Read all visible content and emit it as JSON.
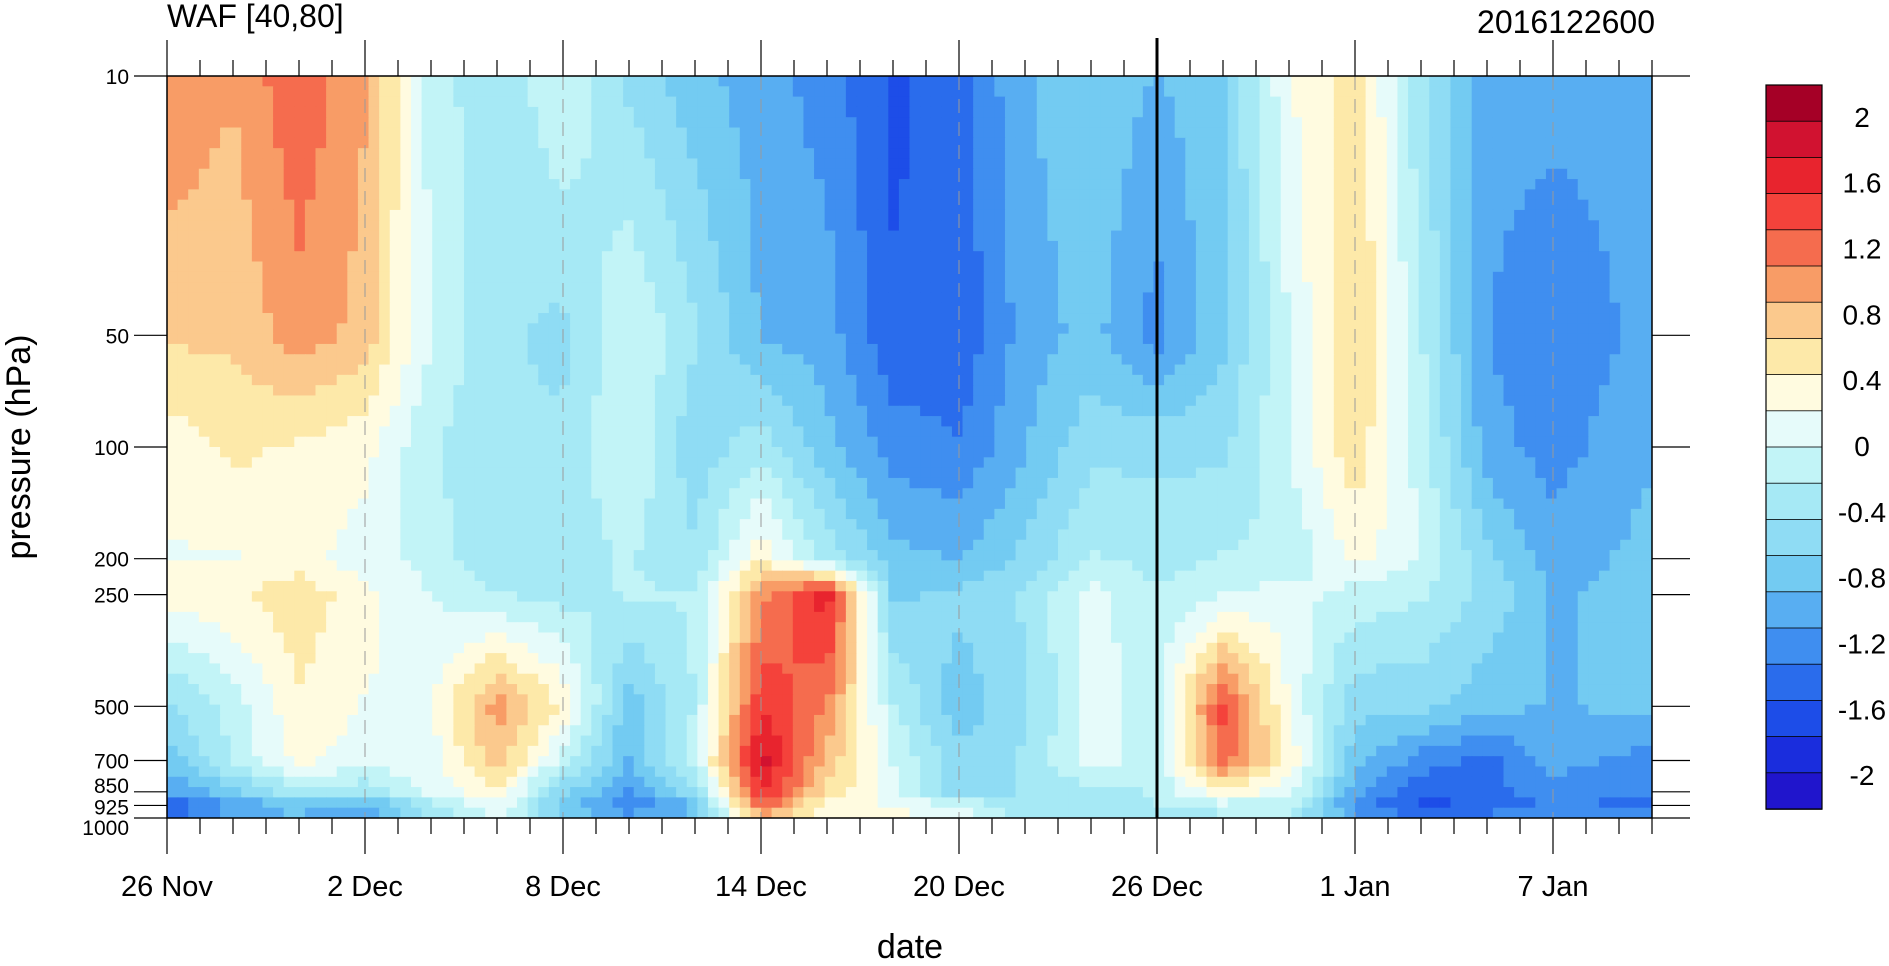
{
  "chart_data": {
    "type": "heatmap",
    "title": "WAF [40,80]",
    "timestamp": "2016122600",
    "xlabel": "date",
    "ylabel": "pressure (hPa)",
    "x_tick_labels": [
      "26 Nov",
      "2 Dec",
      "8 Dec",
      "14 Dec",
      "20 Dec",
      "26 Dec",
      "1 Jan",
      "7 Jan"
    ],
    "x_days": [
      0,
      6,
      12,
      18,
      24,
      30,
      36,
      42
    ],
    "xlim_days": [
      0,
      45
    ],
    "highlight_day": 30,
    "y_ticks": [
      10,
      50,
      100,
      200,
      250,
      500,
      700,
      850,
      925,
      1000
    ],
    "y_tick_labels": [
      "10",
      "50",
      "100",
      "200",
      "250",
      "500",
      "700",
      "850",
      "925",
      "1000"
    ],
    "ylim": [
      10,
      1000
    ],
    "y_scale": "log",
    "grid": "dashed vertical lines at date ticks",
    "colorbar": {
      "labels": [
        "2",
        "1.6",
        "1.2",
        "0.8",
        "0.4",
        "0",
        "-0.4",
        "-0.8",
        "-1.2",
        "-1.6",
        "-2"
      ],
      "label_values": [
        2,
        1.6,
        1.2,
        0.8,
        0.4,
        0,
        -0.4,
        -0.8,
        -1.2,
        -1.6,
        -2
      ],
      "level_range": [
        -2.2,
        2.2
      ],
      "colors": [
        "#a50026",
        "#d11230",
        "#e8242e",
        "#f4423b",
        "#f56c4e",
        "#f89c66",
        "#fbc98d",
        "#fde9a9",
        "#fffbe0",
        "#e6fbfa",
        "#c2f4f7",
        "#a6e9f5",
        "#8fdcf4",
        "#73cbf2",
        "#58aef2",
        "#3f8ef0",
        "#2a6cec",
        "#1d4de8",
        "#1a2ddd",
        "#2015cc"
      ]
    },
    "grid_days": [
      0,
      2,
      4,
      6,
      8,
      10,
      12,
      14,
      16,
      18,
      20,
      22,
      24,
      26,
      28,
      30,
      32,
      34,
      36,
      38,
      40,
      42,
      45
    ],
    "grid_levels": [
      10,
      50,
      100,
      200,
      250,
      500,
      700,
      850,
      925,
      1000
    ],
    "values": [
      [
        1.1,
        0.9,
        1.3,
        0.9,
        -0.1,
        -0.4,
        0.0,
        -0.5,
        -0.8,
        -1.0,
        -1.2,
        -1.6,
        -1.4,
        -0.9,
        -0.7,
        -0.9,
        -0.7,
        0.2,
        0.6,
        -0.4,
        -1.0,
        -1.0,
        -1.0
      ],
      [
        0.7,
        0.7,
        1.0,
        0.8,
        0.0,
        -0.4,
        -0.5,
        0.0,
        -0.4,
        -0.9,
        -1.0,
        -1.5,
        -1.5,
        -1.0,
        -0.8,
        -1.2,
        -0.7,
        0.0,
        0.7,
        -0.2,
        -1.1,
        -1.3,
        -1.0
      ],
      [
        0.3,
        0.5,
        0.4,
        0.3,
        -0.2,
        -0.4,
        -0.4,
        0.0,
        -0.6,
        -0.3,
        -0.8,
        -1.2,
        -1.3,
        -0.9,
        -0.5,
        -0.5,
        -0.5,
        0.0,
        0.6,
        -0.1,
        -1.0,
        -1.2,
        -0.9
      ],
      [
        0.2,
        0.2,
        0.3,
        0.1,
        -0.1,
        -0.4,
        -0.3,
        -0.2,
        -0.4,
        0.4,
        -0.3,
        -0.8,
        -0.9,
        -0.6,
        -0.2,
        -0.3,
        -0.2,
        -0.2,
        0.3,
        0.0,
        -0.6,
        -1.0,
        -0.8
      ],
      [
        0.3,
        0.4,
        0.6,
        0.3,
        0.0,
        -0.2,
        -0.3,
        -0.2,
        -0.2,
        1.0,
        1.7,
        -0.7,
        -0.6,
        -0.4,
        0.1,
        -0.2,
        0.0,
        0.1,
        -0.1,
        -0.2,
        -0.5,
        -0.9,
        -0.8
      ],
      [
        -0.5,
        -0.1,
        0.4,
        0.2,
        0.2,
        1.0,
        0.4,
        -0.8,
        -0.2,
        1.5,
        1.1,
        -0.2,
        -0.8,
        -0.5,
        0.1,
        -0.1,
        1.4,
        0.2,
        -0.6,
        -0.6,
        -0.8,
        -0.9,
        -0.8
      ],
      [
        -0.8,
        -0.2,
        0.3,
        0.1,
        0.1,
        0.8,
        -0.1,
        -0.9,
        -0.1,
        1.9,
        0.8,
        0.0,
        -0.6,
        -0.4,
        0.1,
        -0.1,
        1.2,
        0.4,
        -0.8,
        -1.2,
        -1.4,
        -1.0,
        -1.2
      ],
      [
        -1.1,
        -0.7,
        -0.3,
        -0.4,
        0.1,
        0.4,
        -0.6,
        -1.1,
        -0.5,
        1.6,
        0.6,
        0.1,
        -0.6,
        -0.4,
        -0.3,
        -0.2,
        0.4,
        0.1,
        -1.0,
        -1.5,
        -1.4,
        -1.2,
        -1.3
      ],
      [
        -1.6,
        -1.1,
        -0.8,
        -1.0,
        -0.3,
        0.2,
        -0.8,
        -1.3,
        -0.9,
        1.3,
        0.3,
        0.2,
        0.0,
        -0.4,
        -0.4,
        -0.2,
        -0.1,
        -0.1,
        -1.2,
        -1.6,
        -1.5,
        -1.3,
        -1.4
      ],
      [
        -1.4,
        -0.9,
        -0.9,
        -1.0,
        -0.4,
        0.0,
        -0.6,
        -1.0,
        -0.8,
        0.8,
        0.2,
        0.3,
        0.1,
        -0.3,
        -0.4,
        -0.3,
        -0.3,
        -0.3,
        -1.0,
        -1.3,
        -1.2,
        -1.1,
        -1.1
      ]
    ]
  }
}
